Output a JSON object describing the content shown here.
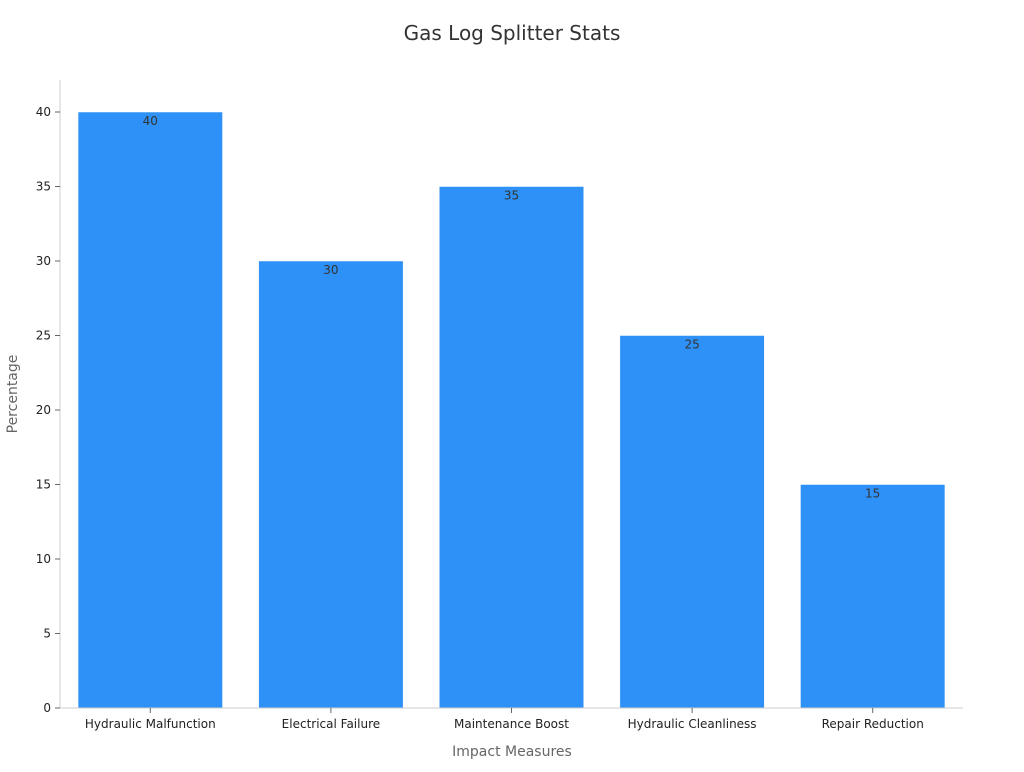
{
  "chart_data": {
    "type": "bar",
    "title": "Gas Log Splitter Stats",
    "xlabel": "Impact Measures",
    "ylabel": "Percentage",
    "categories": [
      "Hydraulic Malfunction",
      "Electrical Failure",
      "Maintenance Boost",
      "Hydraulic Cleanliness",
      "Repair Reduction"
    ],
    "values": [
      40,
      30,
      35,
      25,
      15
    ],
    "ylim": [
      0,
      42
    ],
    "yticks": [
      0,
      5,
      10,
      15,
      20,
      25,
      30,
      35,
      40
    ],
    "grid": false,
    "legend": "none",
    "bar_color": "#2e91f7",
    "axis_color": "#cccccc"
  }
}
